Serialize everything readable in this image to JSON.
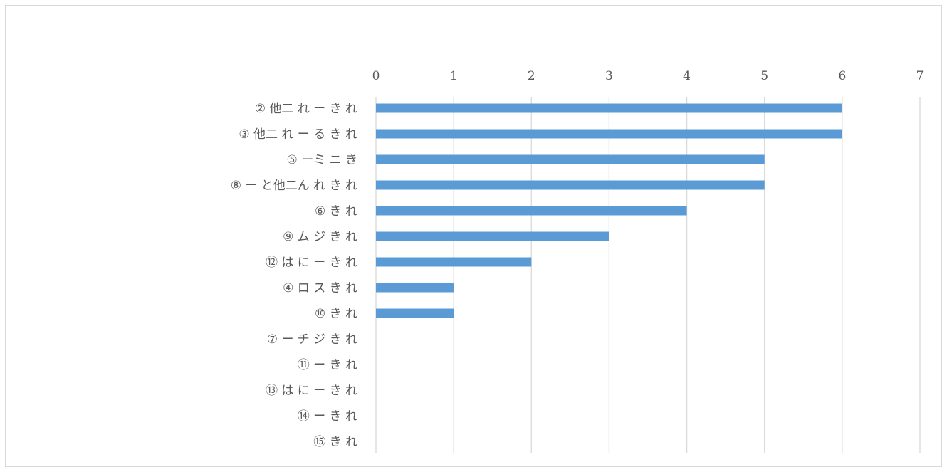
{
  "chart_data": {
    "type": "bar",
    "orientation": "horizontal",
    "title": "",
    "xlabel": "",
    "ylabel": "",
    "xlim": [
      0,
      7
    ],
    "x_ticks": [
      "0",
      "1",
      "2",
      "3",
      "4",
      "5",
      "6",
      "7"
    ],
    "x_axis_position": "top",
    "grid": true,
    "legend": "none",
    "bar_color": "#5b9bd5",
    "grid_color": "#d9d9d9",
    "label_color": "#595959",
    "categories": [
      "② 他二 れ ー き れ",
      "③ 他二 れ ー る き れ",
      "⑤ ーミ ニ き",
      "⑧ ー と他二ん れ き れ",
      "⑥ き れ",
      "⑨ ム ジ き れ",
      "⑫ は に ー き れ",
      "④ ロ ス き れ",
      "⑩ き れ",
      "⑦ ー チ ジ き れ",
      "⑪ ー き れ",
      "⑬ は に ー き れ",
      "⑭ ー き れ",
      "⑮ き れ"
    ],
    "values": [
      6,
      6,
      5,
      5,
      4,
      3,
      2,
      1,
      1,
      0,
      0,
      0,
      0,
      0
    ]
  }
}
